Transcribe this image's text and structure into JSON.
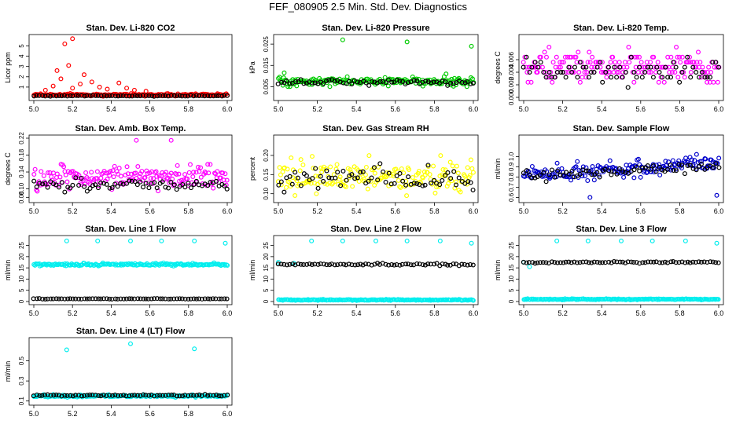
{
  "page": {
    "title": "FEF_080905  2.5 Min. Std. Dev. Diagnostics"
  },
  "chart_data": [
    {
      "type": "scatter",
      "title": "Stan. Dev. Li-820 CO2",
      "ylabel": "Licor ppm",
      "xlim": [
        5.0,
        6.0
      ],
      "ylim": [
        0,
        5.8
      ],
      "xticks": [
        "5.0",
        "5.2",
        "5.4",
        "5.6",
        "5.8",
        "6.0"
      ],
      "yticks": [
        "1",
        "2",
        "3",
        "4",
        "5"
      ],
      "ytick_values": [
        1,
        2,
        3,
        4,
        5
      ],
      "series": [
        {
          "name": "colored",
          "color": "#ff0000",
          "base": 0.25,
          "spread": 0.15,
          "spikes": [
            [
              5.16,
              5.2
            ],
            [
              5.2,
              5.7
            ],
            [
              5.18,
              3.1
            ],
            [
              5.12,
              2.6
            ],
            [
              5.26,
              2.2
            ],
            [
              5.14,
              1.8
            ],
            [
              5.3,
              1.5
            ],
            [
              5.24,
              1.3
            ],
            [
              5.1,
              1.1
            ],
            [
              5.34,
              1.0
            ],
            [
              5.2,
              0.9
            ],
            [
              5.44,
              1.4
            ],
            [
              5.38,
              0.8
            ],
            [
              5.48,
              0.9
            ],
            [
              5.52,
              0.7
            ],
            [
              5.06,
              0.7
            ],
            [
              5.58,
              0.6
            ]
          ]
        },
        {
          "name": "black",
          "color": "#000000",
          "base": 0.15,
          "spread": 0.06
        }
      ]
    },
    {
      "type": "scatter",
      "title": "Stan. Dev. Li-820 Pressure",
      "ylabel": "kPa",
      "xlim": [
        5.0,
        6.0
      ],
      "ylim": [
        0,
        0.028
      ],
      "xticks": [
        "5.0",
        "5.2",
        "5.4",
        "5.6",
        "5.8",
        "6.0"
      ],
      "yticks": [
        "0.005",
        "0.015",
        "0.025"
      ],
      "ytick_values": [
        0.005,
        0.015,
        0.025
      ],
      "series": [
        {
          "name": "colored",
          "color": "#00cc00",
          "base": 0.0075,
          "spread": 0.0025,
          "spikes": [
            [
              5.33,
              0.027
            ],
            [
              5.66,
              0.026
            ],
            [
              5.99,
              0.024
            ],
            [
              5.03,
              0.0115
            ],
            [
              5.86,
              0.011
            ]
          ]
        },
        {
          "name": "black",
          "color": "#000000",
          "base": 0.007,
          "spread": 0.0015
        }
      ]
    },
    {
      "type": "scatter",
      "title": "Stan. Dev. Li-820 Temp.",
      "ylabel": "degrees C",
      "xlim": [
        5.0,
        6.0
      ],
      "ylim": [
        0,
        0.0095
      ],
      "xticks": [
        "5.0",
        "5.2",
        "5.4",
        "5.6",
        "5.8",
        "6.0"
      ],
      "yticks": [
        "0.000",
        "0.002",
        "0.004",
        "0.006"
      ],
      "ytick_values": [
        0,
        0.002,
        0.004,
        0.006
      ],
      "series": [
        {
          "name": "colored",
          "color": "#ff00ff",
          "base": 0.005,
          "spread": 0.003,
          "quantize": 0.0008
        },
        {
          "name": "black",
          "color": "#000000",
          "base": 0.004,
          "spread": 0.0025,
          "quantize": 0.0008
        }
      ]
    },
    {
      "type": "scatter",
      "title": "Stan. Dev. Amb. Box Temp.",
      "ylabel": "degrees C",
      "xlim": [
        5.0,
        6.0
      ],
      "ylim": [
        0.075,
        0.22
      ],
      "xticks": [
        "5.0",
        "5.2",
        "5.4",
        "5.6",
        "5.8",
        "6.0"
      ],
      "yticks": [
        "0.08",
        "0.10",
        "0.14",
        "0.18",
        "0.22"
      ],
      "ytick_values": [
        0.08,
        0.1,
        0.14,
        0.18,
        0.22
      ],
      "series": [
        {
          "name": "colored",
          "color": "#ff00ff",
          "base": 0.125,
          "spread": 0.035,
          "spikes": [
            [
              5.53,
              0.215
            ],
            [
              5.71,
              0.215
            ]
          ]
        },
        {
          "name": "black",
          "color": "#000000",
          "base": 0.11,
          "spread": 0.018
        }
      ]
    },
    {
      "type": "scatter",
      "title": "Stan. Dev. Gas Stream RH",
      "ylabel": "percent",
      "xlim": [
        5.0,
        6.0
      ],
      "ylim": [
        0.085,
        0.245
      ],
      "xticks": [
        "5.0",
        "5.2",
        "5.4",
        "5.6",
        "5.8",
        "6.0"
      ],
      "yticks": [
        "0.10",
        "0.15",
        "0.20"
      ],
      "ytick_values": [
        0.1,
        0.15,
        0.2
      ],
      "series": [
        {
          "name": "colored",
          "color": "#ffff00",
          "base": 0.145,
          "spread": 0.055
        },
        {
          "name": "black",
          "color": "#000000",
          "base": 0.14,
          "spread": 0.04
        }
      ]
    },
    {
      "type": "scatter",
      "title": "Stan. Dev. Sample Flow",
      "ylabel": "ml/min",
      "xlim": [
        5.0,
        6.0
      ],
      "ylim": [
        0.58,
        1.18
      ],
      "xticks": [
        "5.0",
        "5.2",
        "5.4",
        "5.6",
        "5.8",
        "6.0"
      ],
      "yticks": [
        "0.6",
        "0.7",
        "0.8",
        "0.9",
        "1.0"
      ],
      "ytick_values": [
        0.6,
        0.7,
        0.8,
        0.9,
        1.0
      ],
      "series": [
        {
          "name": "colored",
          "color": "#0000cc",
          "base": 0.88,
          "trend": 0.12,
          "spread": 0.1,
          "spikes": [
            [
              5.99,
              0.62
            ],
            [
              5.34,
              0.6
            ]
          ]
        },
        {
          "name": "black",
          "color": "#000000",
          "base": 0.86,
          "trend": 0.1,
          "spread": 0.07
        }
      ]
    },
    {
      "type": "scatter",
      "title": "Stan. Dev. Line 1 Flow",
      "ylabel": "ml/min",
      "xlim": [
        5.0,
        6.0
      ],
      "ylim": [
        0,
        28
      ],
      "xticks": [
        "5.0",
        "5.2",
        "5.4",
        "5.6",
        "5.8",
        "6.0"
      ],
      "yticks": [
        "0",
        "5",
        "10",
        "15",
        "20",
        "25"
      ],
      "ytick_values": [
        0,
        5,
        10,
        15,
        20,
        25
      ],
      "series": [
        {
          "name": "colored",
          "color": "#00eeee",
          "base": 16.5,
          "spread": 0.8,
          "spikes": [
            [
              5.17,
              27
            ],
            [
              5.33,
              27
            ],
            [
              5.5,
              27
            ],
            [
              5.66,
              27
            ],
            [
              5.83,
              27
            ],
            [
              5.99,
              26
            ]
          ]
        },
        {
          "name": "black",
          "color": "#000000",
          "base": 1.2,
          "spread": 0.2
        }
      ]
    },
    {
      "type": "scatter",
      "title": "Stan. Dev. Line 2 Flow",
      "ylabel": "ml/min",
      "xlim": [
        5.0,
        6.0
      ],
      "ylim": [
        0,
        28
      ],
      "xticks": [
        "5.0",
        "5.2",
        "5.4",
        "5.6",
        "5.8",
        "6.0"
      ],
      "yticks": [
        "0",
        "5",
        "10",
        "15",
        "20",
        "25"
      ],
      "ytick_values": [
        0,
        5,
        10,
        15,
        20,
        25
      ],
      "series": [
        {
          "name": "colored",
          "color": "#00eeee",
          "base": 0.7,
          "spread": 0.3,
          "spikes": [
            [
              5.17,
              27
            ],
            [
              5.33,
              27
            ],
            [
              5.5,
              27
            ],
            [
              5.66,
              27
            ],
            [
              5.83,
              27
            ],
            [
              5.99,
              26
            ],
            [
              5.0,
              17.5
            ],
            [
              5.08,
              17
            ]
          ]
        },
        {
          "name": "black",
          "color": "#000000",
          "base": 16.5,
          "spread": 0.6
        }
      ]
    },
    {
      "type": "scatter",
      "title": "Stan. Dev. Line 3 Flow",
      "ylabel": "ml/min",
      "xlim": [
        5.0,
        6.0
      ],
      "ylim": [
        0,
        28
      ],
      "xticks": [
        "5.0",
        "5.2",
        "5.4",
        "5.6",
        "5.8",
        "6.0"
      ],
      "yticks": [
        "0",
        "5",
        "10",
        "15",
        "20",
        "25"
      ],
      "ytick_values": [
        0,
        5,
        10,
        15,
        20,
        25
      ],
      "series": [
        {
          "name": "colored",
          "color": "#00eeee",
          "base": 1.0,
          "spread": 0.3,
          "spikes": [
            [
              5.17,
              27
            ],
            [
              5.33,
              27
            ],
            [
              5.5,
              27
            ],
            [
              5.66,
              27
            ],
            [
              5.83,
              27
            ],
            [
              5.99,
              26
            ],
            [
              5.0,
              17.5
            ],
            [
              5.03,
              15.5
            ]
          ]
        },
        {
          "name": "black",
          "color": "#000000",
          "base": 17.5,
          "spread": 0.5
        }
      ]
    },
    {
      "type": "scatter",
      "title": "Stan. Dev. Line 4 (LT) Flow",
      "ylabel": "ml/min",
      "xlim": [
        5.0,
        6.0
      ],
      "ylim": [
        0.09,
        0.7
      ],
      "xticks": [
        "5.0",
        "5.2",
        "5.4",
        "5.6",
        "5.8",
        "6.0"
      ],
      "yticks": [
        "0.1",
        "0.3",
        "0.5"
      ],
      "ytick_values": [
        0.1,
        0.3,
        0.5
      ],
      "series": [
        {
          "name": "colored",
          "color": "#00eeee",
          "base": 0.15,
          "spread": 0.015,
          "spikes": [
            [
              5.17,
              0.61
            ],
            [
              5.5,
              0.67
            ],
            [
              5.83,
              0.62
            ]
          ]
        },
        {
          "name": "black",
          "color": "#000000",
          "base": 0.155,
          "spread": 0.012
        }
      ]
    }
  ]
}
